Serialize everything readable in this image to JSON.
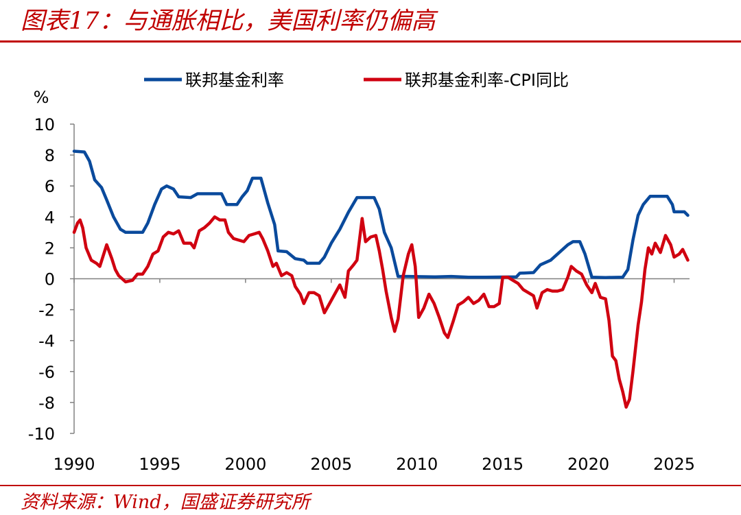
{
  "header": {
    "title": "图表17：与通胀相比，美国利率仍偏高"
  },
  "footer": {
    "source": "资料来源：Wind，国盛证券研究所"
  },
  "colors": {
    "accent": "#c00000",
    "series_blue": "#0a4a9c",
    "series_red": "#d00010"
  },
  "chart_data": {
    "type": "line",
    "ylabel": "%",
    "ylim": [
      -10,
      10
    ],
    "yticks": [
      10,
      8,
      6,
      4,
      2,
      0,
      -2,
      -4,
      -6,
      -8,
      -10
    ],
    "xlim": [
      1990,
      2025.9
    ],
    "xticks": [
      1990,
      1995,
      2000,
      2005,
      2010,
      2015,
      2020,
      2025
    ],
    "grid": false,
    "legend": "top",
    "series": [
      {
        "name": "联邦基金利率",
        "color": "#0a4a9c",
        "points": [
          [
            1990.0,
            8.25
          ],
          [
            1990.6,
            8.2
          ],
          [
            1990.9,
            7.6
          ],
          [
            1991.2,
            6.4
          ],
          [
            1991.6,
            5.9
          ],
          [
            1991.9,
            5.1
          ],
          [
            1992.3,
            4.0
          ],
          [
            1992.7,
            3.2
          ],
          [
            1993.0,
            3.0
          ],
          [
            1993.5,
            3.0
          ],
          [
            1994.0,
            3.0
          ],
          [
            1994.3,
            3.6
          ],
          [
            1994.7,
            4.8
          ],
          [
            1995.1,
            5.8
          ],
          [
            1995.4,
            6.0
          ],
          [
            1995.8,
            5.8
          ],
          [
            1996.1,
            5.3
          ],
          [
            1996.8,
            5.25
          ],
          [
            1997.2,
            5.5
          ],
          [
            1998.0,
            5.5
          ],
          [
            1998.6,
            5.5
          ],
          [
            1998.9,
            4.8
          ],
          [
            1999.5,
            4.8
          ],
          [
            1999.8,
            5.3
          ],
          [
            2000.1,
            5.7
          ],
          [
            2000.4,
            6.5
          ],
          [
            2000.9,
            6.5
          ],
          [
            2001.3,
            4.9
          ],
          [
            2001.7,
            3.5
          ],
          [
            2001.9,
            1.8
          ],
          [
            2002.4,
            1.75
          ],
          [
            2002.9,
            1.3
          ],
          [
            2003.4,
            1.2
          ],
          [
            2003.6,
            1.0
          ],
          [
            2004.3,
            1.0
          ],
          [
            2004.6,
            1.4
          ],
          [
            2005.0,
            2.3
          ],
          [
            2005.5,
            3.2
          ],
          [
            2006.0,
            4.3
          ],
          [
            2006.5,
            5.25
          ],
          [
            2007.5,
            5.25
          ],
          [
            2007.8,
            4.5
          ],
          [
            2008.1,
            3.0
          ],
          [
            2008.5,
            2.0
          ],
          [
            2008.9,
            0.15
          ],
          [
            2009.5,
            0.15
          ],
          [
            2011.0,
            0.12
          ],
          [
            2012.0,
            0.15
          ],
          [
            2013.0,
            0.1
          ],
          [
            2014.0,
            0.1
          ],
          [
            2015.8,
            0.12
          ],
          [
            2016.0,
            0.36
          ],
          [
            2016.8,
            0.4
          ],
          [
            2017.2,
            0.9
          ],
          [
            2017.8,
            1.2
          ],
          [
            2018.2,
            1.6
          ],
          [
            2018.8,
            2.2
          ],
          [
            2019.1,
            2.4
          ],
          [
            2019.5,
            2.4
          ],
          [
            2019.8,
            1.6
          ],
          [
            2020.2,
            0.1
          ],
          [
            2021.0,
            0.08
          ],
          [
            2022.0,
            0.1
          ],
          [
            2022.3,
            0.6
          ],
          [
            2022.6,
            2.5
          ],
          [
            2022.9,
            4.1
          ],
          [
            2023.2,
            4.8
          ],
          [
            2023.6,
            5.33
          ],
          [
            2024.6,
            5.33
          ],
          [
            2024.9,
            4.8
          ],
          [
            2025.0,
            4.33
          ],
          [
            2025.6,
            4.33
          ],
          [
            2025.8,
            4.1
          ]
        ]
      },
      {
        "name": "联邦基金利率-CPI同比",
        "color": "#d00010",
        "points": [
          [
            1990.0,
            3.0
          ],
          [
            1990.2,
            3.6
          ],
          [
            1990.35,
            3.8
          ],
          [
            1990.5,
            3.3
          ],
          [
            1990.7,
            2.0
          ],
          [
            1991.0,
            1.2
          ],
          [
            1991.3,
            1.0
          ],
          [
            1991.5,
            0.8
          ],
          [
            1991.7,
            1.5
          ],
          [
            1991.9,
            2.2
          ],
          [
            1992.2,
            1.3
          ],
          [
            1992.4,
            0.6
          ],
          [
            1992.6,
            0.2
          ],
          [
            1992.8,
            0.0
          ],
          [
            1993.0,
            -0.2
          ],
          [
            1993.4,
            -0.1
          ],
          [
            1993.7,
            0.3
          ],
          [
            1994.0,
            0.3
          ],
          [
            1994.3,
            0.8
          ],
          [
            1994.6,
            1.6
          ],
          [
            1994.9,
            1.8
          ],
          [
            1995.2,
            2.7
          ],
          [
            1995.5,
            3.0
          ],
          [
            1995.8,
            2.9
          ],
          [
            1996.1,
            3.1
          ],
          [
            1996.4,
            2.3
          ],
          [
            1996.8,
            2.3
          ],
          [
            1997.0,
            2.0
          ],
          [
            1997.3,
            3.1
          ],
          [
            1997.6,
            3.3
          ],
          [
            1997.9,
            3.6
          ],
          [
            1998.2,
            4.0
          ],
          [
            1998.5,
            3.8
          ],
          [
            1998.8,
            3.8
          ],
          [
            1999.0,
            3.0
          ],
          [
            1999.3,
            2.6
          ],
          [
            1999.6,
            2.5
          ],
          [
            1999.9,
            2.4
          ],
          [
            2000.2,
            2.8
          ],
          [
            2000.5,
            2.9
          ],
          [
            2000.8,
            3.0
          ],
          [
            2001.0,
            2.6
          ],
          [
            2001.3,
            1.8
          ],
          [
            2001.6,
            0.8
          ],
          [
            2001.8,
            1.0
          ],
          [
            2002.1,
            0.2
          ],
          [
            2002.4,
            0.4
          ],
          [
            2002.7,
            0.2
          ],
          [
            2002.9,
            -0.5
          ],
          [
            2003.2,
            -1.0
          ],
          [
            2003.4,
            -1.6
          ],
          [
            2003.7,
            -0.9
          ],
          [
            2004.0,
            -0.9
          ],
          [
            2004.3,
            -1.1
          ],
          [
            2004.6,
            -2.2
          ],
          [
            2004.9,
            -1.6
          ],
          [
            2005.2,
            -1.0
          ],
          [
            2005.5,
            -0.4
          ],
          [
            2005.8,
            -1.2
          ],
          [
            2006.0,
            0.5
          ],
          [
            2006.3,
            0.9
          ],
          [
            2006.5,
            1.2
          ],
          [
            2006.8,
            3.9
          ],
          [
            2007.0,
            2.4
          ],
          [
            2007.3,
            2.7
          ],
          [
            2007.6,
            2.8
          ],
          [
            2007.8,
            1.8
          ],
          [
            2008.0,
            0.6
          ],
          [
            2008.2,
            -0.8
          ],
          [
            2008.5,
            -2.5
          ],
          [
            2008.7,
            -3.4
          ],
          [
            2008.9,
            -2.6
          ],
          [
            2009.2,
            0.2
          ],
          [
            2009.5,
            1.6
          ],
          [
            2009.7,
            2.2
          ],
          [
            2009.9,
            0.8
          ],
          [
            2010.1,
            -2.5
          ],
          [
            2010.4,
            -1.9
          ],
          [
            2010.7,
            -1.0
          ],
          [
            2011.0,
            -1.6
          ],
          [
            2011.3,
            -2.5
          ],
          [
            2011.6,
            -3.5
          ],
          [
            2011.8,
            -3.8
          ],
          [
            2012.1,
            -2.8
          ],
          [
            2012.4,
            -1.7
          ],
          [
            2012.7,
            -1.5
          ],
          [
            2013.0,
            -1.2
          ],
          [
            2013.3,
            -1.6
          ],
          [
            2013.6,
            -1.4
          ],
          [
            2013.9,
            -1.0
          ],
          [
            2014.2,
            -1.8
          ],
          [
            2014.5,
            -1.8
          ],
          [
            2014.8,
            -1.6
          ],
          [
            2015.0,
            0.1
          ],
          [
            2015.3,
            0.1
          ],
          [
            2015.6,
            -0.1
          ],
          [
            2015.9,
            -0.3
          ],
          [
            2016.2,
            -0.7
          ],
          [
            2016.5,
            -0.9
          ],
          [
            2016.8,
            -1.1
          ],
          [
            2017.0,
            -1.9
          ],
          [
            2017.3,
            -0.9
          ],
          [
            2017.6,
            -0.7
          ],
          [
            2017.9,
            -0.8
          ],
          [
            2018.2,
            -0.8
          ],
          [
            2018.5,
            -0.7
          ],
          [
            2018.8,
            0.1
          ],
          [
            2019.0,
            0.8
          ],
          [
            2019.3,
            0.5
          ],
          [
            2019.6,
            0.3
          ],
          [
            2019.9,
            -0.4
          ],
          [
            2020.2,
            -0.9
          ],
          [
            2020.4,
            -0.3
          ],
          [
            2020.7,
            -1.2
          ],
          [
            2021.0,
            -1.3
          ],
          [
            2021.2,
            -2.7
          ],
          [
            2021.4,
            -5.0
          ],
          [
            2021.6,
            -5.3
          ],
          [
            2021.8,
            -6.5
          ],
          [
            2022.0,
            -7.3
          ],
          [
            2022.2,
            -8.3
          ],
          [
            2022.4,
            -7.8
          ],
          [
            2022.6,
            -6.0
          ],
          [
            2022.9,
            -3.0
          ],
          [
            2023.1,
            -1.5
          ],
          [
            2023.3,
            0.6
          ],
          [
            2023.5,
            2.0
          ],
          [
            2023.7,
            1.6
          ],
          [
            2023.9,
            2.3
          ],
          [
            2024.2,
            1.7
          ],
          [
            2024.5,
            2.8
          ],
          [
            2024.8,
            2.2
          ],
          [
            2025.0,
            1.4
          ],
          [
            2025.3,
            1.6
          ],
          [
            2025.5,
            1.9
          ],
          [
            2025.8,
            1.2
          ]
        ]
      }
    ]
  }
}
